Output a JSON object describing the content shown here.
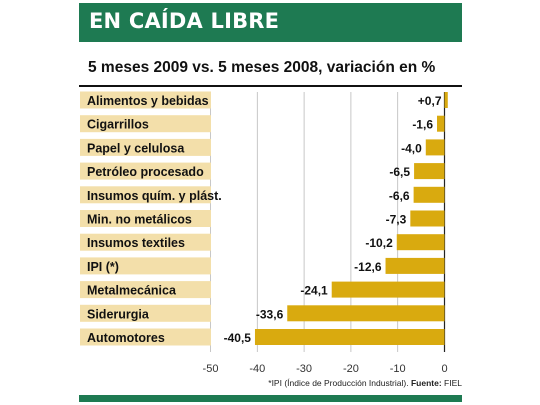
{
  "header": {
    "title": "EN CAÍDA LIBRE",
    "subtitle": "5 meses 2009 vs. 5 meses 2008, variación en %"
  },
  "footnote": {
    "text": "*IPI (Índice de Producción Industrial).",
    "source_label": "Fuente:",
    "source": "FIEL"
  },
  "colors": {
    "header_bg": "#1e7a52",
    "label_bg": "#f3dfaa",
    "bar": "#d9aa0f",
    "text": "#111111"
  },
  "chart_data": {
    "type": "bar",
    "orientation": "horizontal",
    "title": "EN CAÍDA LIBRE",
    "subtitle": "5 meses 2009 vs. 5 meses 2008, variación en %",
    "categories": [
      "Alimentos y bebidas",
      "Cigarrillos",
      "Papel  y celulosa",
      "Petróleo procesado",
      "Insumos quím. y plást.",
      "Min. no metálicos",
      "Insumos textiles",
      "IPI (*)",
      "Metalmecánica",
      "Siderurgia",
      "Automotores"
    ],
    "values": [
      0.7,
      -1.6,
      -4.0,
      -6.5,
      -6.6,
      -7.3,
      -10.2,
      -12.6,
      -24.1,
      -33.6,
      -40.5
    ],
    "value_labels": [
      "+0,7",
      "-1,6",
      "-4,0",
      "-6,5",
      "-6,6",
      "-7,3",
      "-10,2",
      "-12,6",
      "-24,1",
      "-33,6",
      "-40,5"
    ],
    "xlim": [
      -50,
      0
    ],
    "xticks": [
      -50,
      -40,
      -30,
      -20,
      -10,
      0
    ],
    "xtick_labels": [
      "-50",
      "-40",
      "-30",
      "-20",
      "-10",
      "0"
    ],
    "xlabel": "",
    "ylabel": "",
    "grid": true,
    "legend": "none"
  }
}
